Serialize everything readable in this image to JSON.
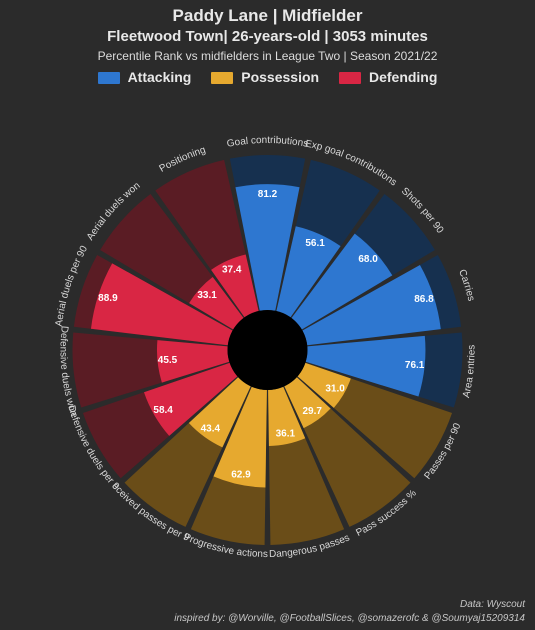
{
  "header": {
    "line1": "Paddy Lane | Midfielder",
    "line2": "Fleetwood Town| 26-years-old | 3053 minutes",
    "line3": "Percentile Rank vs midfielders in League Two | Season 2021/22"
  },
  "legend": {
    "items": [
      {
        "label": "Attacking",
        "color": "#2e77d0"
      },
      {
        "label": "Possession",
        "color": "#e6a92f"
      },
      {
        "label": "Defending",
        "color": "#d92644"
      }
    ]
  },
  "chart": {
    "type": "polar-bar",
    "background": "#2b2b2b",
    "inner_radius": 40,
    "outer_radius": 195,
    "center_fill": "#000000",
    "groups": {
      "Attacking": {
        "bg": "#16304f",
        "fg": "#2e77d0"
      },
      "Possession": {
        "bg": "#6a4d18",
        "fg": "#e6a92f"
      },
      "Defending": {
        "bg": "#5a1c24",
        "fg": "#d92644"
      }
    },
    "metrics": [
      {
        "label": "Goal contributions",
        "value": 81.2,
        "group": "Attacking"
      },
      {
        "label": "Exp goal contributions",
        "value": 56.1,
        "group": "Attacking"
      },
      {
        "label": "Shots per 90",
        "value": 68.0,
        "group": "Attacking"
      },
      {
        "label": "Carries",
        "value": 86.8,
        "group": "Attacking"
      },
      {
        "label": "Area entries",
        "value": 76.1,
        "group": "Attacking"
      },
      {
        "label": "Passes per 90",
        "value": 31.0,
        "group": "Possession"
      },
      {
        "label": "Pass success %",
        "value": 29.7,
        "group": "Possession"
      },
      {
        "label": "Dangerous passes",
        "value": 36.1,
        "group": "Possession"
      },
      {
        "label": "Progressive actions",
        "value": 62.9,
        "group": "Possession"
      },
      {
        "label": "Received passes per 90",
        "value": 43.4,
        "group": "Possession"
      },
      {
        "label": "Defensive duels per 90",
        "value": 58.4,
        "group": "Defending"
      },
      {
        "label": "Defensive duels won",
        "value": 45.5,
        "group": "Defending"
      },
      {
        "label": "Aerial duels per 90",
        "value": 88.9,
        "group": "Defending"
      },
      {
        "label": "Aerial duels won",
        "value": 33.1,
        "group": "Defending"
      },
      {
        "label": "Positioning",
        "value": 37.4,
        "group": "Defending"
      }
    ]
  },
  "credits": {
    "data": "Data: Wyscout",
    "inspired": "inspired by: @Worville, @FootballSlices, @somazerofc & @Soumyaj15209314"
  }
}
